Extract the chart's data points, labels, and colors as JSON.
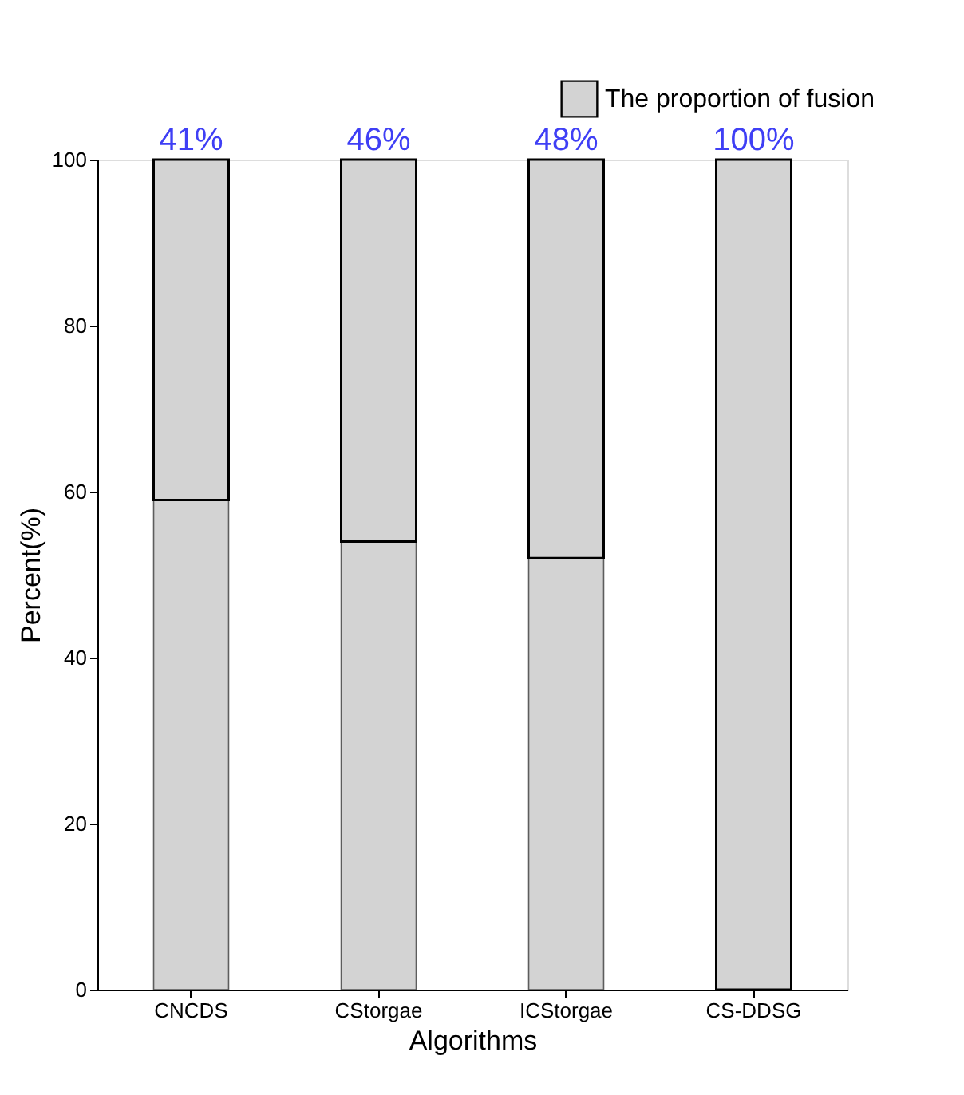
{
  "chart_data": {
    "type": "bar",
    "stacked": true,
    "categories": [
      "CNCDS",
      "CStorgae",
      "ICStorgae",
      "CS-DDSG"
    ],
    "xlabel": "Algorithms",
    "ylabel": "Percent(%)",
    "ylim": [
      0,
      100
    ],
    "yticks": [
      0,
      20,
      40,
      60,
      80,
      100
    ],
    "grid": false,
    "legend": "top right",
    "series": [
      {
        "color": "#d3d3d3",
        "values": [
          59,
          54,
          52,
          0
        ]
      },
      {
        "name": "The proportion of fusion",
        "color": "#d3d3d3",
        "values": [
          41,
          46,
          48,
          100
        ],
        "value_labels": [
          "41%",
          "46%",
          "48%",
          "100%"
        ]
      }
    ]
  }
}
